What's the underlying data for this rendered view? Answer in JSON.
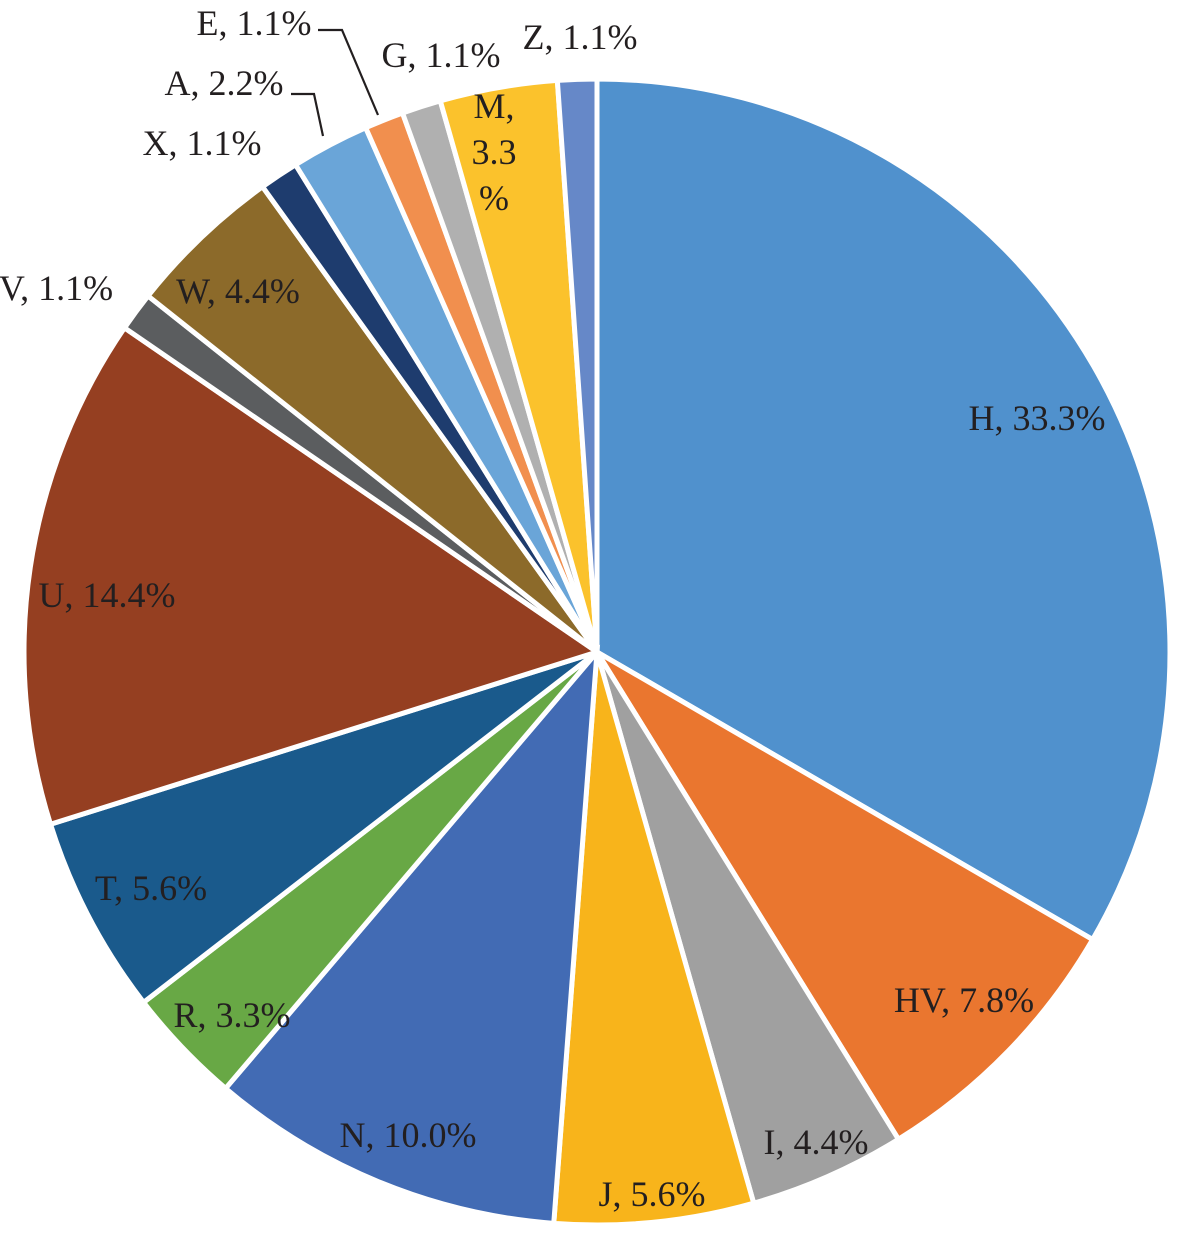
{
  "chart_data": {
    "type": "pie",
    "title": "",
    "slices": [
      {
        "name": "H",
        "value": 33.3,
        "label": "H, 33.3%",
        "color": "#5091cd"
      },
      {
        "name": "HV",
        "value": 7.8,
        "label": "HV, 7.8%",
        "color": "#ea762f"
      },
      {
        "name": "I",
        "value": 4.4,
        "label": "I, 4.4%",
        "color": "#a0a0a0"
      },
      {
        "name": "J",
        "value": 5.6,
        "label": "J, 5.6%",
        "color": "#f8b41b"
      },
      {
        "name": "N",
        "value": 10.0,
        "label": "N, 10.0%",
        "color": "#426bb4"
      },
      {
        "name": "R",
        "value": 3.3,
        "label": "R, 3.3%",
        "color": "#68a845"
      },
      {
        "name": "T",
        "value": 5.6,
        "label": "T, 5.6%",
        "color": "#1a5a8c"
      },
      {
        "name": "U",
        "value": 14.4,
        "label": "U, 14.4%",
        "color": "#953f21"
      },
      {
        "name": "V",
        "value": 1.1,
        "label": "V, 1.1%",
        "color": "#5b5d5f"
      },
      {
        "name": "W",
        "value": 4.4,
        "label": "W, 4.4%",
        "color": "#8c6a2a"
      },
      {
        "name": "X",
        "value": 1.1,
        "label": "X, 1.1%",
        "color": "#1e3c6e"
      },
      {
        "name": "A",
        "value": 2.2,
        "label": "A, 2.2%",
        "color": "#6aa5d8"
      },
      {
        "name": "E",
        "value": 1.1,
        "label": "E, 1.1%",
        "color": "#f18f4e"
      },
      {
        "name": "G",
        "value": 1.1,
        "label": "G, 1.1%",
        "color": "#b0b0b0"
      },
      {
        "name": "M",
        "value": 3.3,
        "label": "M, 3.3 %",
        "label_lines": [
          "M,",
          "3.3",
          "%"
        ],
        "color": "#fbc22c"
      },
      {
        "name": "Z",
        "value": 1.1,
        "label": "Z, 1.1%",
        "color": "#6688c8"
      }
    ]
  }
}
